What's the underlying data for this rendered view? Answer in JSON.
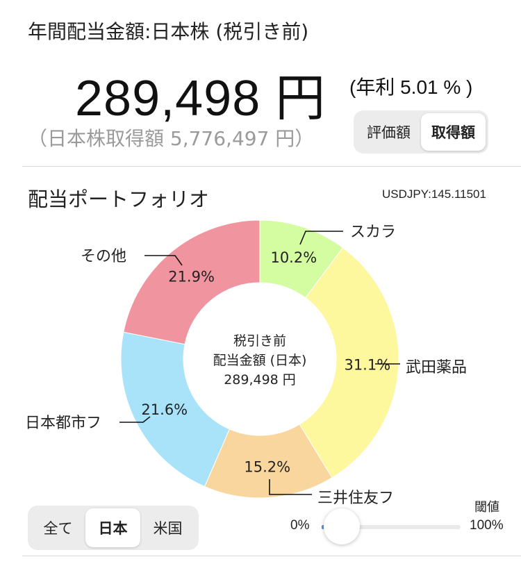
{
  "header": {
    "title": "年間配当金額:日本株 (税引き前)",
    "total_amount": "289,498 円",
    "yield": "(年利 5.01 % )",
    "cost_basis": "（日本株取得額 5,776,497 円）"
  },
  "basis_toggle": {
    "options": [
      "評価額",
      "取得額"
    ],
    "selected": "取得額"
  },
  "portfolio": {
    "title": "配当ポートフォリオ",
    "fx_rate": "USDJPY:145.11501",
    "center_text": [
      "税引き前",
      "配当金額 (日本)",
      "289,498 円"
    ]
  },
  "chart_data": {
    "type": "donut",
    "slices": [
      {
        "name": "スカラ",
        "value": 10.2,
        "label": "10.2%",
        "color": "#d4fca1"
      },
      {
        "name": "武田薬品",
        "value": 31.1,
        "label": "31.1%",
        "color": "#fdf79e"
      },
      {
        "name": "三井住友フ",
        "value": 15.2,
        "label": "15.2%",
        "color": "#f8d69e"
      },
      {
        "name": "日本都市フ",
        "value": 21.6,
        "label": "21.6%",
        "color": "#a8e3fa"
      },
      {
        "name": "その他",
        "value": 21.9,
        "label": "21.9%",
        "color": "#f0959f"
      }
    ]
  },
  "region_toggle": {
    "options": [
      "全て",
      "日本",
      "米国"
    ],
    "selected": "日本"
  },
  "threshold": {
    "label": "閾値",
    "min_label": "0%",
    "max_label": "100%",
    "value": 0.02
  }
}
